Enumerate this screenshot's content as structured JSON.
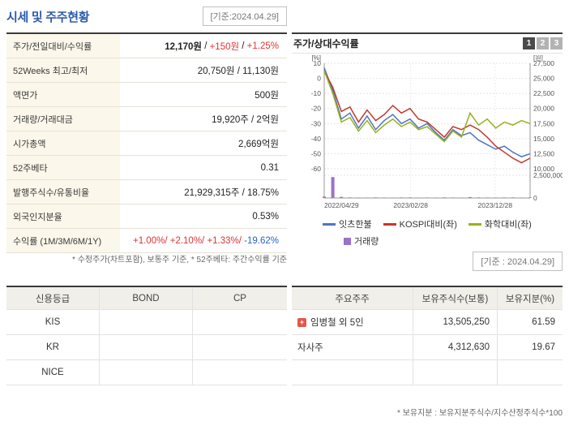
{
  "header": {
    "title": "시세 및 주주현황",
    "date_badge": "[기준:2024.04.29]"
  },
  "quote_table": {
    "rows": [
      {
        "label": "주가/전일대비/수익률",
        "segments": [
          {
            "text": "12,170원",
            "style": "bold"
          },
          {
            "text": " / "
          },
          {
            "text": "+150원",
            "style": "up"
          },
          {
            "text": " / "
          },
          {
            "text": "+1.25%",
            "style": "up"
          }
        ]
      },
      {
        "label": "52Weeks 최고/최저",
        "segments": [
          {
            "text": "20,750원 / 11,130원"
          }
        ]
      },
      {
        "label": "액면가",
        "segments": [
          {
            "text": "500원"
          }
        ]
      },
      {
        "label": "거래량/거래대금",
        "segments": [
          {
            "text": "19,920주 / 2억원"
          }
        ]
      },
      {
        "label": "시가총액",
        "segments": [
          {
            "text": "2,669억원"
          }
        ]
      },
      {
        "label": "52주베타",
        "segments": [
          {
            "text": "0.31"
          }
        ]
      },
      {
        "label": "발행주식수/유통비율",
        "segments": [
          {
            "text": "21,929,315주 / 18.75%"
          }
        ]
      },
      {
        "label": "외국인지분율",
        "segments": [
          {
            "text": "0.53%"
          }
        ]
      },
      {
        "label": "수익률 (1M/3M/6M/1Y)",
        "segments": [
          {
            "text": "+1.00%/",
            "style": "up"
          },
          {
            "text": " +2.10%/",
            "style": "up"
          },
          {
            "text": " +1.33%/",
            "style": "up"
          },
          {
            "text": " -19.62%",
            "style": "down"
          }
        ]
      }
    ],
    "footnote": "* 수정주가(차트포함), 보통주 기준, * 52주베타: 주간수익률 기준"
  },
  "chart_panel": {
    "title": "주가/상대수익률",
    "page_buttons": [
      "1",
      "2",
      "3"
    ],
    "active_button": "1",
    "date_badge": "[기준 : 2024.04.29]"
  },
  "chart_data": {
    "type": "line",
    "title": "주가/상대수익률",
    "left_axis": {
      "label": "[%]",
      "min": -60,
      "max": 10,
      "ticks": [
        10,
        0,
        -10,
        -20,
        -30,
        -40,
        -50,
        -60
      ]
    },
    "right_axis": {
      "label": "[원]",
      "ticks": [
        "27,500",
        "25,000",
        "22,500",
        "20,000",
        "17,500",
        "15,000",
        "12,500",
        "10,000"
      ]
    },
    "volume_axis_ticks": [
      "2,500,000",
      "0"
    ],
    "x_tick_labels": [
      "2022/04/29",
      "2023/02/28",
      "2023/12/28"
    ],
    "x_tick_positions": [
      0,
      0.42,
      0.83
    ],
    "series": [
      {
        "name": "잇츠한불",
        "color": "#4f74c2",
        "values": [
          7,
          -8,
          -27,
          -23,
          -33,
          -25,
          -34,
          -28,
          -24,
          -30,
          -27,
          -33,
          -30,
          -36,
          -41,
          -34,
          -38,
          -36,
          -41,
          -44,
          -47,
          -45,
          -49,
          -52,
          -50
        ]
      },
      {
        "name": "KOSPI대비(좌)",
        "color": "#c0392b",
        "values": [
          5,
          -6,
          -22,
          -19,
          -29,
          -21,
          -28,
          -24,
          -18,
          -23,
          -20,
          -27,
          -29,
          -34,
          -39,
          -32,
          -34,
          -31,
          -34,
          -39,
          -45,
          -49,
          -53,
          -56,
          -53
        ]
      },
      {
        "name": "화학대비(좌)",
        "color": "#97b21e",
        "values": [
          5,
          -10,
          -29,
          -26,
          -35,
          -28,
          -36,
          -31,
          -27,
          -32,
          -29,
          -34,
          -32,
          -37,
          -42,
          -35,
          -39,
          -23,
          -31,
          -27,
          -33,
          -29,
          -31,
          -28,
          -30
        ]
      }
    ],
    "volume": {
      "name": "거래량",
      "color": "#9b72c8",
      "max": 2500000,
      "values": [
        150000,
        2300000,
        120000,
        60000,
        50000,
        45000,
        60000,
        50000,
        40000,
        55000,
        60000,
        45000,
        50000,
        40000,
        65000,
        50000,
        45000,
        100000,
        60000,
        50000,
        45000,
        55000,
        60000,
        40000,
        60000
      ]
    }
  },
  "credit_table": {
    "headers": [
      "신용등급",
      "BOND",
      "CP"
    ],
    "rows": [
      [
        "KIS",
        "",
        ""
      ],
      [
        "KR",
        "",
        ""
      ],
      [
        "NICE",
        "",
        ""
      ]
    ]
  },
  "shareholder_table": {
    "headers": [
      "주요주주",
      "보유주식수(보통)",
      "보유지분(%)"
    ],
    "rows": [
      {
        "name": "임병철 외 5인",
        "shares": "13,505,250",
        "ratio": "61.59",
        "icon": true
      },
      {
        "name": "자사주",
        "shares": "4,312,630",
        "ratio": "19.67",
        "icon": false
      },
      {
        "name": "",
        "shares": "",
        "ratio": "",
        "icon": false
      }
    ],
    "footnote": "* 보유지분 : 보유지분주식수/지수산정주식수*100"
  }
}
